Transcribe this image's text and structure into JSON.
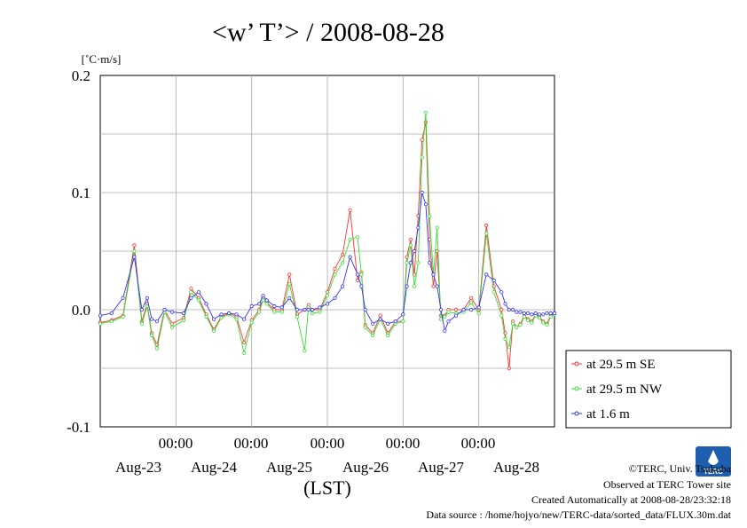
{
  "chart_data": {
    "type": "line",
    "title": "<w’ T’> / 2008-08-28",
    "ylabel": "[˚C·m/s]",
    "xlabel": "(LST)",
    "ylim": [
      -0.1,
      0.2
    ],
    "y_ticks": [
      "0.2",
      "0.1",
      "0.0",
      "-0.1"
    ],
    "x_range_days": [
      0,
      6
    ],
    "x_time_labels": [
      "00:00",
      "00:00",
      "00:00",
      "00:00",
      "00:00"
    ],
    "x_date_labels": [
      "Aug-23",
      "Aug-24",
      "Aug-25",
      "Aug-26",
      "Aug-27",
      "Aug-28"
    ],
    "grid": true,
    "legend_position": "right",
    "series": [
      {
        "name": "at 29.5 m SE",
        "color": "#ff3030",
        "x": [
          0.0,
          0.15,
          0.3,
          0.45,
          0.55,
          0.62,
          0.68,
          0.75,
          0.85,
          0.95,
          1.1,
          1.2,
          1.3,
          1.4,
          1.5,
          1.6,
          1.7,
          1.8,
          1.9,
          2.0,
          2.1,
          2.15,
          2.2,
          2.3,
          2.4,
          2.5,
          2.6,
          2.7,
          2.75,
          2.8,
          2.9,
          3.0,
          3.1,
          3.2,
          3.3,
          3.4,
          3.45,
          3.5,
          3.6,
          3.7,
          3.8,
          3.9,
          4.0,
          4.05,
          4.1,
          4.15,
          4.2,
          4.25,
          4.3,
          4.35,
          4.4,
          4.45,
          4.5,
          4.55,
          4.6,
          4.7,
          4.8,
          4.9,
          5.0,
          5.1,
          5.2,
          5.3,
          5.35,
          5.4,
          5.45,
          5.5,
          5.55,
          5.6,
          5.65,
          5.7,
          5.75,
          5.8,
          5.85,
          5.9,
          5.95,
          6.0
        ],
        "y": [
          -0.011,
          -0.009,
          -0.005,
          0.055,
          -0.01,
          0.005,
          -0.02,
          -0.03,
          0.0,
          -0.012,
          -0.007,
          0.018,
          0.01,
          -0.004,
          -0.017,
          -0.006,
          -0.003,
          -0.006,
          -0.028,
          -0.009,
          0.0,
          0.01,
          0.006,
          0.0,
          0.0,
          0.03,
          -0.004,
          0.0,
          0.004,
          0.0,
          0.0,
          0.015,
          0.035,
          0.047,
          0.085,
          0.025,
          0.032,
          -0.013,
          -0.02,
          -0.005,
          -0.02,
          -0.01,
          -0.01,
          0.045,
          0.06,
          0.03,
          0.08,
          0.145,
          0.16,
          0.06,
          0.02,
          0.05,
          -0.005,
          -0.005,
          0.0,
          0.0,
          0.0,
          0.01,
          0.0,
          0.072,
          0.02,
          0.0,
          -0.02,
          -0.05,
          -0.01,
          -0.015,
          -0.012,
          -0.005,
          -0.008,
          -0.01,
          -0.004,
          -0.006,
          -0.01,
          -0.012,
          -0.005,
          -0.003
        ]
      },
      {
        "name": "at 29.5 m NW",
        "color": "#30e030",
        "x": [
          0.0,
          0.15,
          0.3,
          0.45,
          0.55,
          0.62,
          0.68,
          0.75,
          0.85,
          0.95,
          1.1,
          1.2,
          1.3,
          1.4,
          1.5,
          1.6,
          1.7,
          1.8,
          1.9,
          2.0,
          2.1,
          2.15,
          2.2,
          2.3,
          2.4,
          2.5,
          2.6,
          2.7,
          2.75,
          2.8,
          2.9,
          3.0,
          3.1,
          3.2,
          3.3,
          3.4,
          3.45,
          3.5,
          3.6,
          3.7,
          3.8,
          3.9,
          4.0,
          4.05,
          4.1,
          4.15,
          4.2,
          4.25,
          4.3,
          4.35,
          4.4,
          4.45,
          4.5,
          4.55,
          4.6,
          4.7,
          4.8,
          4.9,
          5.0,
          5.1,
          5.2,
          5.3,
          5.35,
          5.4,
          5.45,
          5.5,
          5.55,
          5.6,
          5.65,
          5.7,
          5.75,
          5.8,
          5.85,
          5.9,
          5.95,
          6.0
        ],
        "y": [
          -0.012,
          -0.01,
          -0.006,
          0.05,
          -0.012,
          0.003,
          -0.022,
          -0.033,
          -0.002,
          -0.015,
          -0.009,
          0.015,
          0.008,
          -0.006,
          -0.018,
          -0.007,
          -0.004,
          -0.008,
          -0.037,
          -0.011,
          -0.002,
          0.008,
          0.005,
          -0.002,
          -0.002,
          0.022,
          -0.006,
          -0.035,
          0.002,
          -0.003,
          -0.002,
          0.012,
          0.03,
          0.04,
          0.06,
          0.062,
          0.03,
          -0.015,
          -0.022,
          -0.008,
          -0.022,
          -0.012,
          -0.01,
          0.04,
          0.055,
          0.02,
          0.04,
          0.13,
          0.168,
          0.08,
          0.03,
          0.07,
          -0.008,
          -0.006,
          -0.002,
          -0.003,
          -0.002,
          0.006,
          -0.003,
          0.065,
          0.015,
          -0.005,
          -0.025,
          -0.032,
          -0.012,
          -0.015,
          -0.013,
          -0.006,
          -0.009,
          -0.011,
          -0.005,
          -0.007,
          -0.011,
          -0.013,
          -0.006,
          -0.004
        ]
      },
      {
        "name": "at 1.6 m",
        "color": "#3030ff",
        "x": [
          0.0,
          0.15,
          0.3,
          0.45,
          0.55,
          0.62,
          0.68,
          0.75,
          0.85,
          0.95,
          1.1,
          1.2,
          1.3,
          1.4,
          1.5,
          1.6,
          1.7,
          1.8,
          1.9,
          2.0,
          2.1,
          2.15,
          2.2,
          2.3,
          2.4,
          2.5,
          2.6,
          2.7,
          2.75,
          2.8,
          2.9,
          3.0,
          3.1,
          3.2,
          3.3,
          3.4,
          3.45,
          3.5,
          3.6,
          3.7,
          3.8,
          3.9,
          4.0,
          4.05,
          4.1,
          4.15,
          4.2,
          4.25,
          4.3,
          4.35,
          4.4,
          4.45,
          4.5,
          4.55,
          4.6,
          4.7,
          4.8,
          4.9,
          5.0,
          5.1,
          5.2,
          5.3,
          5.35,
          5.4,
          5.45,
          5.5,
          5.55,
          5.6,
          5.65,
          5.7,
          5.75,
          5.8,
          5.85,
          5.9,
          5.95,
          6.0
        ],
        "y": [
          -0.005,
          -0.003,
          0.01,
          0.045,
          0.0,
          0.01,
          -0.008,
          -0.01,
          0.0,
          -0.002,
          -0.003,
          0.01,
          0.015,
          0.005,
          -0.008,
          -0.004,
          -0.003,
          -0.004,
          -0.008,
          0.003,
          0.005,
          0.012,
          0.008,
          0.003,
          0.002,
          0.01,
          0.0,
          0.0,
          0.0,
          0.0,
          0.002,
          0.005,
          0.01,
          0.02,
          0.045,
          0.03,
          0.02,
          0.0,
          -0.012,
          -0.008,
          -0.012,
          -0.01,
          -0.004,
          0.02,
          0.04,
          0.05,
          0.07,
          0.1,
          0.09,
          0.04,
          0.03,
          0.02,
          0.0,
          -0.018,
          -0.01,
          -0.005,
          0.0,
          0.0,
          0.002,
          0.03,
          0.025,
          0.015,
          0.005,
          0.0,
          0.0,
          -0.002,
          -0.002,
          -0.003,
          -0.003,
          -0.004,
          -0.003,
          -0.004,
          -0.004,
          -0.003,
          -0.003,
          -0.003
        ]
      }
    ]
  },
  "footer": {
    "logo_text": "TERC",
    "copyright": "©TERC, Univ. Tsukuba",
    "observed": "Observed at TERC Tower site",
    "created": "Created Automatically at 2008-08-28/23:32:18",
    "source": "Data source : /home/hojyo/new/TERC-data/sorted_data/FLUX.30m.dat"
  }
}
